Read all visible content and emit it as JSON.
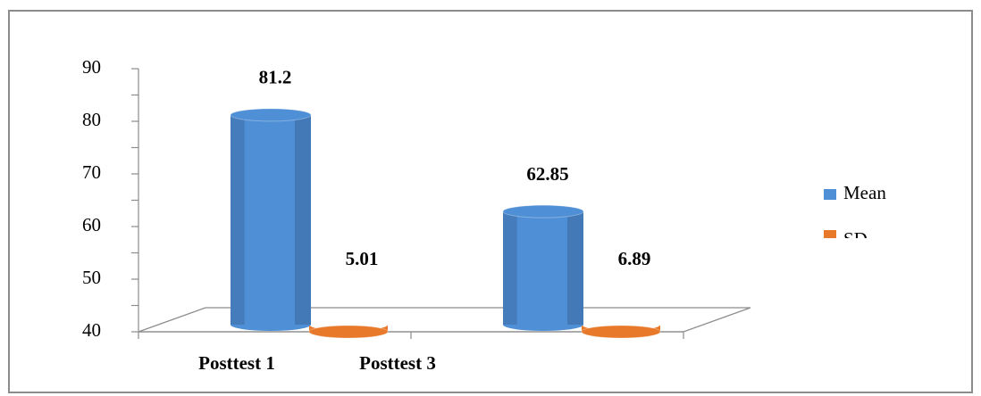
{
  "chart_data": {
    "type": "bar3d",
    "categories": [
      "Posttest 1",
      "Posttest 3"
    ],
    "series": [
      {
        "name": "Mean",
        "color": "#4f8fd6",
        "values": [
          81.2,
          62.85
        ]
      },
      {
        "name": "SD",
        "color": "#e8792a",
        "values": [
          5.01,
          6.89
        ]
      }
    ],
    "ylim": [
      40,
      90
    ],
    "yticks": [
      40,
      50,
      60,
      70,
      80,
      90
    ],
    "legend": "right"
  }
}
